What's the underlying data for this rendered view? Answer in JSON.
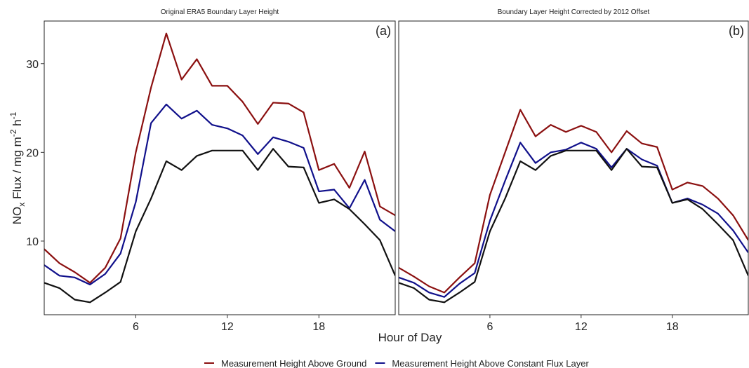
{
  "x_label": "Hour of Day",
  "y_label_parts": [
    "NO",
    "x",
    " Flux / mg m",
    "-2",
    " h",
    "-1"
  ],
  "chart_data": [
    {
      "type": "line",
      "title": "Original ERA5 Boundary Layer Height",
      "panel_label": "(a)",
      "x": [
        0,
        1,
        2,
        3,
        4,
        5,
        6,
        7,
        8,
        9,
        10,
        11,
        12,
        13,
        14,
        15,
        16,
        17,
        18,
        19,
        20,
        21,
        22,
        23
      ],
      "xlim": [
        0,
        23
      ],
      "ylim": [
        1.7,
        34.8
      ],
      "xticks": [
        6,
        12,
        18
      ],
      "yticks": [
        10,
        20,
        30
      ],
      "series": [
        {
          "name": "Measurement Height Above Ground",
          "color": "#8b1010",
          "values": [
            9.1,
            7.5,
            6.5,
            5.3,
            7.0,
            10.3,
            20,
            27.3,
            33.4,
            28.2,
            30.5,
            27.5,
            27.5,
            25.7,
            23.2,
            25.6,
            25.5,
            24.5,
            18,
            18.7,
            16,
            20.1,
            13.9,
            12.9
          ]
        },
        {
          "name": "Measurement Height Above Constant Flux Layer",
          "color": "#10108b",
          "values": [
            7.3,
            6.1,
            5.9,
            5.1,
            6.3,
            8.6,
            14.4,
            23.3,
            25.4,
            23.8,
            24.7,
            23.1,
            22.7,
            21.9,
            19.8,
            21.7,
            21.2,
            20.5,
            15.6,
            15.8,
            13.7,
            16.9,
            12.4,
            11.1
          ]
        },
        {
          "color": "#111111",
          "values": [
            5.3,
            4.7,
            3.4,
            3.1,
            4.2,
            5.4,
            11.1,
            14.8,
            19,
            18,
            19.6,
            20.2,
            20.2,
            20.2,
            18,
            20.4,
            18.4,
            18.3,
            14.3,
            14.7,
            13.6,
            11.9,
            10.1,
            6.1
          ]
        }
      ]
    },
    {
      "type": "line",
      "title": "Boundary Layer Height Corrected by 2012 Offset",
      "panel_label": "(b)",
      "x": [
        0,
        1,
        2,
        3,
        4,
        5,
        6,
        7,
        8,
        9,
        10,
        11,
        12,
        13,
        14,
        15,
        16,
        17,
        18,
        19,
        20,
        21,
        22,
        23
      ],
      "xlim": [
        0,
        23
      ],
      "ylim": [
        1.7,
        34.8
      ],
      "xticks": [
        6,
        12,
        18
      ],
      "series": [
        {
          "color": "#8b1010",
          "values": [
            7.0,
            6.0,
            4.9,
            4.2,
            5.9,
            7.5,
            15.2,
            20,
            24.8,
            21.8,
            23.1,
            22.3,
            23,
            22.3,
            20,
            22.4,
            21,
            20.6,
            15.8,
            16.6,
            16.2,
            14.8,
            12.9,
            10.1
          ]
        },
        {
          "color": "#10108b",
          "values": [
            5.9,
            5.3,
            4.2,
            3.7,
            5.2,
            6.4,
            12.3,
            16.8,
            21.1,
            18.8,
            20,
            20.3,
            21.1,
            20.4,
            18.3,
            20.4,
            19.2,
            18.5,
            14.3,
            14.8,
            14.1,
            13.1,
            11.2,
            8.7
          ]
        },
        {
          "color": "#111111",
          "values": [
            5.3,
            4.7,
            3.4,
            3.1,
            4.2,
            5.4,
            11.1,
            14.8,
            19,
            18,
            19.6,
            20.2,
            20.2,
            20.2,
            18,
            20.4,
            18.4,
            18.3,
            14.3,
            14.7,
            13.6,
            11.9,
            10.1,
            6.1
          ]
        }
      ]
    }
  ]
}
